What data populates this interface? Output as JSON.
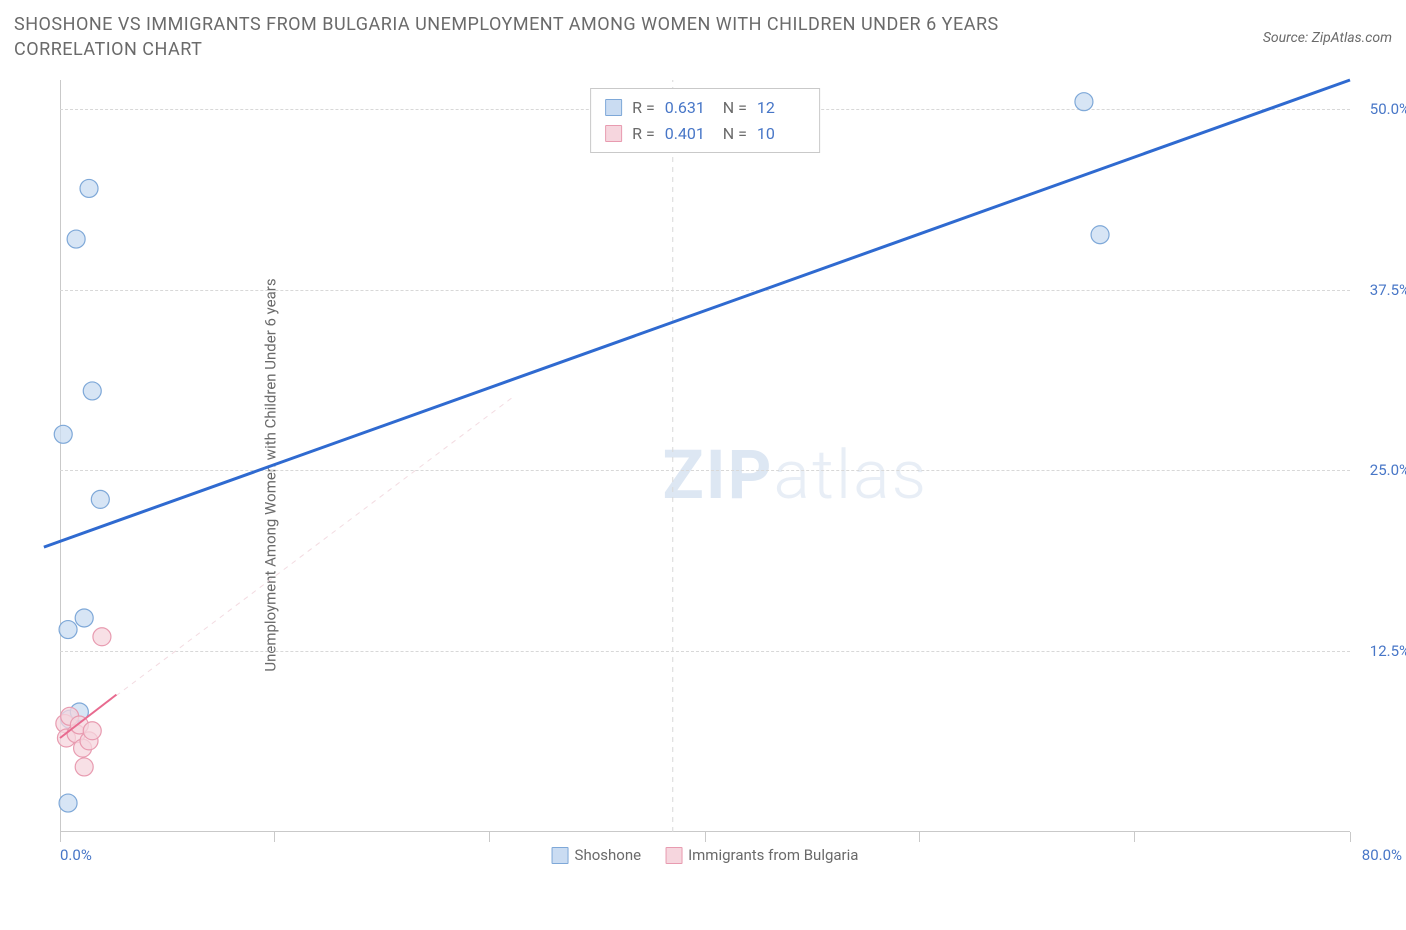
{
  "title": "SHOSHONE VS IMMIGRANTS FROM BULGARIA UNEMPLOYMENT AMONG WOMEN WITH CHILDREN UNDER 6 YEARS CORRELATION CHART",
  "source": "Source: ZipAtlas.com",
  "y_axis_label": "Unemployment Among Women with Children Under 6 years",
  "watermark_1": "ZIP",
  "watermark_2": "atlas",
  "chart": {
    "type": "scatter",
    "xlim": [
      0,
      80
    ],
    "ylim": [
      0,
      52
    ],
    "x_ticks": [
      0,
      13.3,
      26.6,
      40,
      53.3,
      66.6,
      80
    ],
    "y_gridlines": [
      12.5,
      25.0,
      37.5,
      50.0
    ],
    "x_tick_labels": {
      "min": "0.0%",
      "max": "80.0%"
    },
    "y_tick_labels": [
      "12.5%",
      "25.0%",
      "37.5%",
      "50.0%"
    ],
    "background_color": "#ffffff",
    "grid_color": "#d8d8d8",
    "axis_color": "#c9c9c9",
    "label_color": "#4776c7",
    "series": [
      {
        "name": "Shoshone",
        "color_fill": "#cadcf2",
        "color_stroke": "#7ea8d8",
        "marker_radius": 9,
        "r": "0.631",
        "n": "12",
        "trend": {
          "x1": -1,
          "y1": 19.7,
          "x2": 80,
          "y2": 52,
          "stroke": "#2f6ad0",
          "width": 3,
          "dash": "none"
        },
        "guide": {
          "x1": 38,
          "y1": 0,
          "x2": 38,
          "y2": 52,
          "stroke": "#d8d8d8",
          "width": 1,
          "dash": "5,5"
        },
        "points": [
          {
            "x": 0.5,
            "y": 2.0
          },
          {
            "x": 0.5,
            "y": 14.0
          },
          {
            "x": 1.5,
            "y": 14.8
          },
          {
            "x": 2.5,
            "y": 23.0
          },
          {
            "x": 0.2,
            "y": 27.5
          },
          {
            "x": 2.0,
            "y": 30.5
          },
          {
            "x": 1.0,
            "y": 41.0
          },
          {
            "x": 1.8,
            "y": 44.5
          },
          {
            "x": 64.5,
            "y": 41.3
          },
          {
            "x": 63.5,
            "y": 50.5
          },
          {
            "x": 0.6,
            "y": 7.8
          },
          {
            "x": 1.2,
            "y": 8.3
          }
        ]
      },
      {
        "name": "Immigrants from Bulgaria",
        "color_fill": "#f6d6de",
        "color_stroke": "#e89bb0",
        "marker_radius": 9,
        "r": "0.401",
        "n": "10",
        "trend": {
          "x1": 0,
          "y1": 6.5,
          "x2": 3.5,
          "y2": 9.5,
          "stroke": "#e86a8f",
          "width": 2,
          "dash": "none"
        },
        "guide": {
          "x1": 0,
          "y1": 6.5,
          "x2": 28,
          "y2": 30,
          "stroke": "#f3dbe1",
          "width": 1,
          "dash": "5,5"
        },
        "points": [
          {
            "x": 0.3,
            "y": 7.5
          },
          {
            "x": 0.6,
            "y": 8.0
          },
          {
            "x": 0.4,
            "y": 6.5
          },
          {
            "x": 1.0,
            "y": 6.8
          },
          {
            "x": 1.4,
            "y": 5.8
          },
          {
            "x": 1.8,
            "y": 6.3
          },
          {
            "x": 1.2,
            "y": 7.4
          },
          {
            "x": 2.0,
            "y": 7.0
          },
          {
            "x": 1.5,
            "y": 4.5
          },
          {
            "x": 2.6,
            "y": 13.5
          }
        ]
      }
    ],
    "legend": [
      {
        "label": "Shoshone",
        "fill": "#cadcf2",
        "stroke": "#7ea8d8"
      },
      {
        "label": "Immigrants from Bulgaria",
        "fill": "#f6d6de",
        "stroke": "#e89bb0"
      }
    ],
    "stats_labels": {
      "r": "R =",
      "n": "N ="
    }
  }
}
